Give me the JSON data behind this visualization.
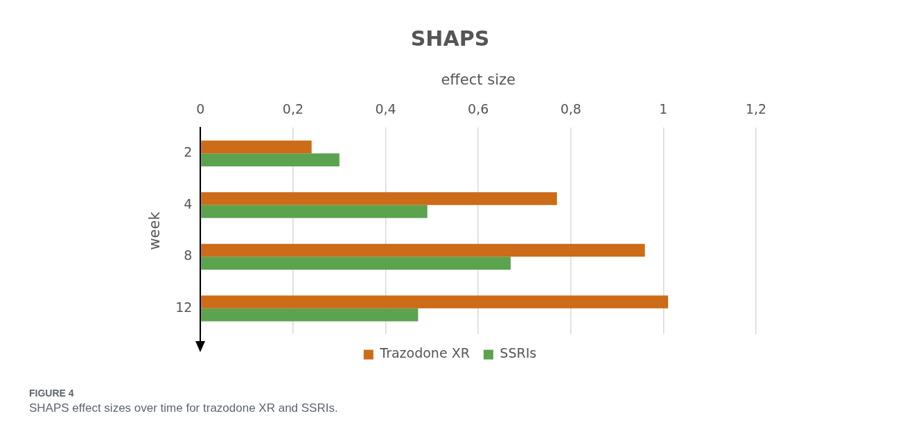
{
  "chart_data": {
    "type": "bar",
    "orientation": "horizontal",
    "title": "SHAPS",
    "xlabel": "effect size",
    "ylabel": "week",
    "categories": [
      "2",
      "4",
      "8",
      "12"
    ],
    "series": [
      {
        "name": "Trazodone XR",
        "color": "#cc6b18",
        "values": [
          0.24,
          0.77,
          0.96,
          1.01
        ]
      },
      {
        "name": "SSRIs",
        "color": "#5ba34f",
        "values": [
          0.3,
          0.49,
          0.67,
          0.47
        ]
      }
    ],
    "xlim": [
      0,
      1.2
    ],
    "xticks": [
      0,
      {
        "value": 0.2,
        "label": "0,2"
      },
      {
        "value": 0.4,
        "label": "0,4"
      },
      {
        "value": 0.6,
        "label": "0,6"
      },
      {
        "value": 0.8,
        "label": "0,8"
      },
      1,
      {
        "value": 1.2,
        "label": "1,2"
      }
    ],
    "grid": "x",
    "legend": "bottom",
    "annotations": [
      "FIGURE 4",
      "SHAPS effect sizes over time for trazodone XR and SSRIs."
    ]
  }
}
